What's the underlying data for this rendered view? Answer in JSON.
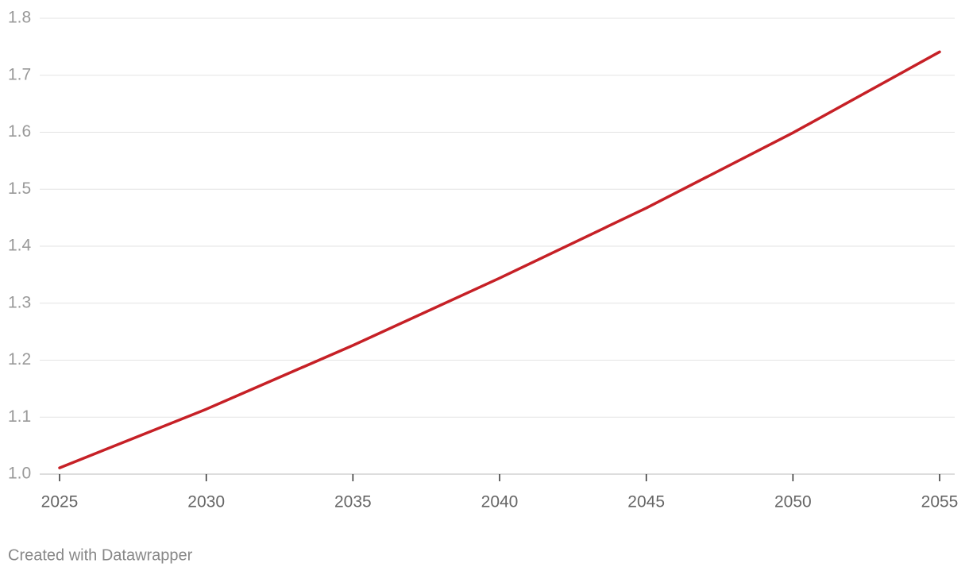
{
  "chart_data": {
    "type": "line",
    "x": [
      2025,
      2030,
      2035,
      2040,
      2045,
      2050,
      2055
    ],
    "series": [
      {
        "color": "#c62026",
        "values": [
          1.011,
          1.114,
          1.226,
          1.344,
          1.467,
          1.599,
          1.741
        ]
      }
    ],
    "xlim": [
      2025,
      2055
    ],
    "xticks": [
      2025,
      2030,
      2035,
      2040,
      2045,
      2050,
      2055
    ],
    "ylim": [
      1.0,
      1.8
    ],
    "yticks": [
      {
        "value": 1.0,
        "label": "1.0"
      },
      1.1,
      1.2,
      1.3,
      1.4,
      1.5,
      1.6,
      1.7,
      1.8
    ],
    "grid": true,
    "credit": "Created with Datawrapper"
  }
}
